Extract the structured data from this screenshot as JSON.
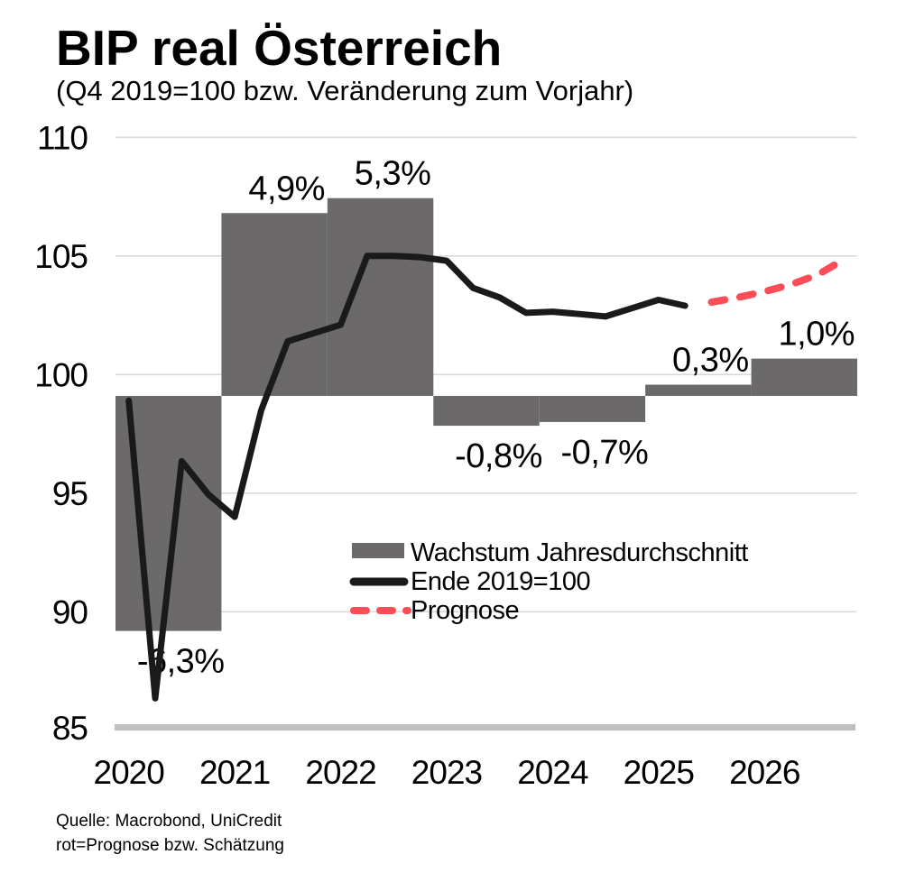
{
  "header": {
    "title": "BIP real Österreich",
    "subtitle": "(Q4 2019=100 bzw. Veränderung zum Vorjahr)"
  },
  "chart_data": {
    "type": "combo-bar-line",
    "title": "BIP real Österreich",
    "subtitle": "(Q4 2019=100 bzw. Veränderung zum Vorjahr)",
    "y_axis": {
      "min": 85,
      "max": 110,
      "ticks": [
        110,
        105,
        100,
        95,
        90,
        85
      ],
      "grid": true
    },
    "x_axis": {
      "years": [
        "2020",
        "2021",
        "2022",
        "2023",
        "2024",
        "2025",
        "2026"
      ],
      "frequency": "quarterly"
    },
    "grid_color": "#D9D9D9",
    "axis_color": "#BFBFBF",
    "legend_position": "center-bottom",
    "bars": {
      "legend_label": "Wachstum Jahresdurchschnitt",
      "color": "#6B6969",
      "baseline_index": 99.1,
      "index_units_per_pct": 1.573,
      "values": [
        {
          "year": "2020",
          "pct": -6.3,
          "label": "-6,3%",
          "label_color": "#000000"
        },
        {
          "year": "2021",
          "pct": 4.9,
          "label": "4,9%",
          "label_color": "#000000"
        },
        {
          "year": "2022",
          "pct": 5.3,
          "label": "5,3%",
          "label_color": "#000000"
        },
        {
          "year": "2023",
          "pct": -0.8,
          "label": "-0,8%",
          "label_color": "#000000"
        },
        {
          "year": "2024",
          "pct": -0.7,
          "label": "-0,7%",
          "label_color": "#000000"
        },
        {
          "year": "2025",
          "pct": 0.3,
          "label": "0,3%",
          "label_color": "#F40000"
        },
        {
          "year": "2026",
          "pct": 1.0,
          "label": "1,0%",
          "label_color": "#F40000"
        }
      ]
    },
    "line": {
      "legend_label": "Ende 2019=100",
      "color": "#1A1A1A",
      "start": "2020 Q1",
      "frequency": "quarterly",
      "values": [
        98.9,
        86.35,
        96.35,
        94.95,
        94.0,
        98.5,
        101.4,
        101.75,
        102.1,
        105.0,
        105.0,
        104.95,
        104.8,
        103.65,
        103.25,
        102.6,
        102.65,
        102.55,
        102.45,
        102.8,
        103.15,
        102.9
      ]
    },
    "forecast": {
      "legend_label": "Prognose",
      "color": "#FB4D57",
      "start": "2025 Q3",
      "frequency": "quarterly",
      "values": [
        103.05,
        103.25,
        103.5,
        103.8,
        104.2,
        104.85
      ]
    }
  },
  "footer": {
    "source_line1": "Quelle: Macrobond, UniCredit",
    "source_line2": "rot=Prognose bzw. Schätzung"
  }
}
